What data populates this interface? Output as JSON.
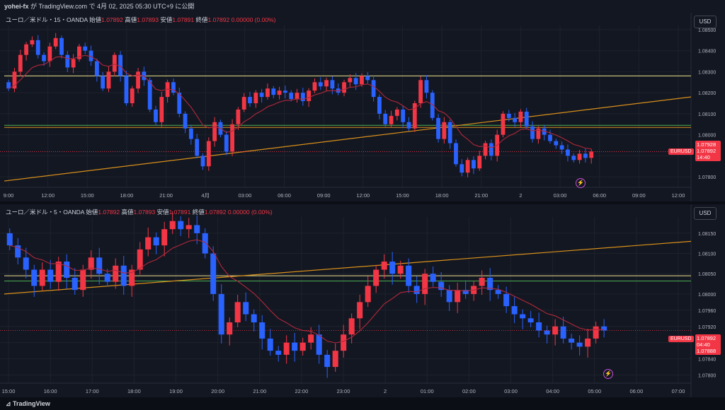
{
  "header": {
    "user": "yohei-fx",
    "text": " が TradingView.com で 4月 02, 2025 05:30 UTC+9 に公開"
  },
  "footer": {
    "logo_label": "TradingView"
  },
  "currency_button": "USD",
  "colors": {
    "up": "#f23645",
    "down": "#2962ff",
    "ma": "#b2283a",
    "yellow": "#f0e68c",
    "green": "#4caf50",
    "orange": "#d9901a",
    "bg": "#131722"
  },
  "chart_data": [
    {
      "type": "candlestick",
      "legend": {
        "symbol": "ユーロ／米ドル・15・OANDA",
        "o_label": "始値",
        "o": "1.07892",
        "h_label": "高値",
        "h": "1.07893",
        "l_label": "安値",
        "l": "1.07891",
        "c_label": "終値",
        "c": "1.07892",
        "chg": "0.00000 (0.00%)"
      },
      "y_ticks": [
        "1.08500",
        "1.08400",
        "1.08300",
        "1.08200",
        "1.08100",
        "1.08000",
        "1.07900",
        "1.07800"
      ],
      "ylim": [
        1.0775,
        1.0852
      ],
      "x_ticks": [
        "9:00",
        "12:00",
        "15:00",
        "18:00",
        "21:00",
        "4月",
        "03:00",
        "06:00",
        "09:00",
        "12:00",
        "15:00",
        "18:00",
        "21:00",
        "2",
        "03:00",
        "06:00",
        "09:00",
        "12:00"
      ],
      "symbol_tag": "EURUSD",
      "price_labels": [
        "1.07928",
        "1.07892",
        "14:40"
      ],
      "hlines": [
        {
          "value": 1.0828,
          "color": "yellow"
        },
        {
          "value": 1.08045,
          "color": "green"
        },
        {
          "value": 1.08035,
          "color": "orange"
        }
      ],
      "trend": [
        [
          0,
          1.0778
        ],
        [
          1,
          1.0818
        ]
      ],
      "closes": [
        1.0822,
        1.083,
        1.0838,
        1.0843,
        1.0845,
        1.0838,
        1.0835,
        1.0842,
        1.0846,
        1.0838,
        1.0832,
        1.0836,
        1.0842,
        1.084,
        1.0835,
        1.0828,
        1.0822,
        1.083,
        1.0838,
        1.0828,
        1.0815,
        1.0822,
        1.083,
        1.0826,
        1.0812,
        1.0806,
        1.0818,
        1.0825,
        1.082,
        1.081,
        1.0803,
        1.0798,
        1.079,
        1.0785,
        1.0797,
        1.0806,
        1.08,
        1.0792,
        1.0805,
        1.0812,
        1.0818,
        1.0815,
        1.082,
        1.0818,
        1.0822,
        1.0819,
        1.0821,
        1.082,
        1.0817,
        1.082,
        1.0816,
        1.0821,
        1.0825,
        1.0823,
        1.0826,
        1.0822,
        1.082,
        1.0825,
        1.0827,
        1.0824,
        1.0828,
        1.0826,
        1.0818,
        1.081,
        1.0805,
        1.0809,
        1.0812,
        1.0806,
        1.0803,
        1.0815,
        1.0826,
        1.082,
        1.0808,
        1.0798,
        1.0806,
        1.0796,
        1.0786,
        1.0782,
        1.0788,
        1.0784,
        1.079,
        1.0796,
        1.079,
        1.08,
        1.081,
        1.0808,
        1.0806,
        1.0811,
        1.0804,
        1.0798,
        1.0803,
        1.08,
        1.0797,
        1.0795,
        1.0793,
        1.079,
        1.0788,
        1.0791,
        1.0789,
        1.0792
      ]
    },
    {
      "type": "candlestick",
      "legend": {
        "symbol": "ユーロ／米ドル・5・OANDA",
        "o_label": "始値",
        "o": "1.07892",
        "h_label": "高値",
        "h": "1.07893",
        "l_label": "安値",
        "l": "1.07891",
        "c_label": "終値",
        "c": "1.07892",
        "chg": "0.00000 (0.00%)"
      },
      "y_ticks": [
        "1.08150",
        "1.08100",
        "1.08050",
        "1.08000",
        "1.07960",
        "1.07920",
        "1.07880",
        "1.07840",
        "1.07800"
      ],
      "ylim": [
        1.0778,
        1.0819
      ],
      "x_ticks": [
        "15:00",
        "16:00",
        "17:00",
        "18:00",
        "19:00",
        "20:00",
        "21:00",
        "22:00",
        "23:00",
        "2",
        "01:00",
        "02:00",
        "03:00",
        "04:00",
        "05:00",
        "06:00",
        "07:00"
      ],
      "symbol_tag": "EURUSD",
      "price_labels": [
        "1.07892",
        "04:40",
        "1.07888"
      ],
      "hlines": [
        {
          "value": 1.08045,
          "color": "yellow"
        },
        {
          "value": 1.08032,
          "color": "green"
        }
      ],
      "trend": [
        [
          0,
          1.08
        ],
        [
          1,
          1.0813
        ]
      ],
      "closes": [
        1.0812,
        1.0809,
        1.0806,
        1.0802,
        1.0806,
        1.0803,
        1.0808,
        1.0804,
        1.0801,
        1.0806,
        1.0809,
        1.0805,
        1.0803,
        1.0807,
        1.0802,
        1.0806,
        1.0811,
        1.0814,
        1.0812,
        1.0816,
        1.0818,
        1.0816,
        1.0817,
        1.0815,
        1.081,
        1.08,
        1.079,
        1.0793,
        1.0798,
        1.0795,
        1.0793,
        1.0789,
        1.0786,
        1.0785,
        1.0788,
        1.0786,
        1.0788,
        1.079,
        1.0785,
        1.0782,
        1.0786,
        1.079,
        1.0794,
        1.0798,
        1.0802,
        1.0806,
        1.0808,
        1.0805,
        1.0807,
        1.0802,
        1.08,
        1.0805,
        1.0803,
        1.0801,
        1.0798,
        1.0801,
        1.08,
        1.0802,
        1.0804,
        1.0801,
        1.08,
        1.0797,
        1.0795,
        1.0794,
        1.0793,
        1.0791,
        1.079,
        1.0792,
        1.0789,
        1.0788,
        1.0787,
        1.0789,
        1.0792,
        1.0791
      ]
    }
  ]
}
